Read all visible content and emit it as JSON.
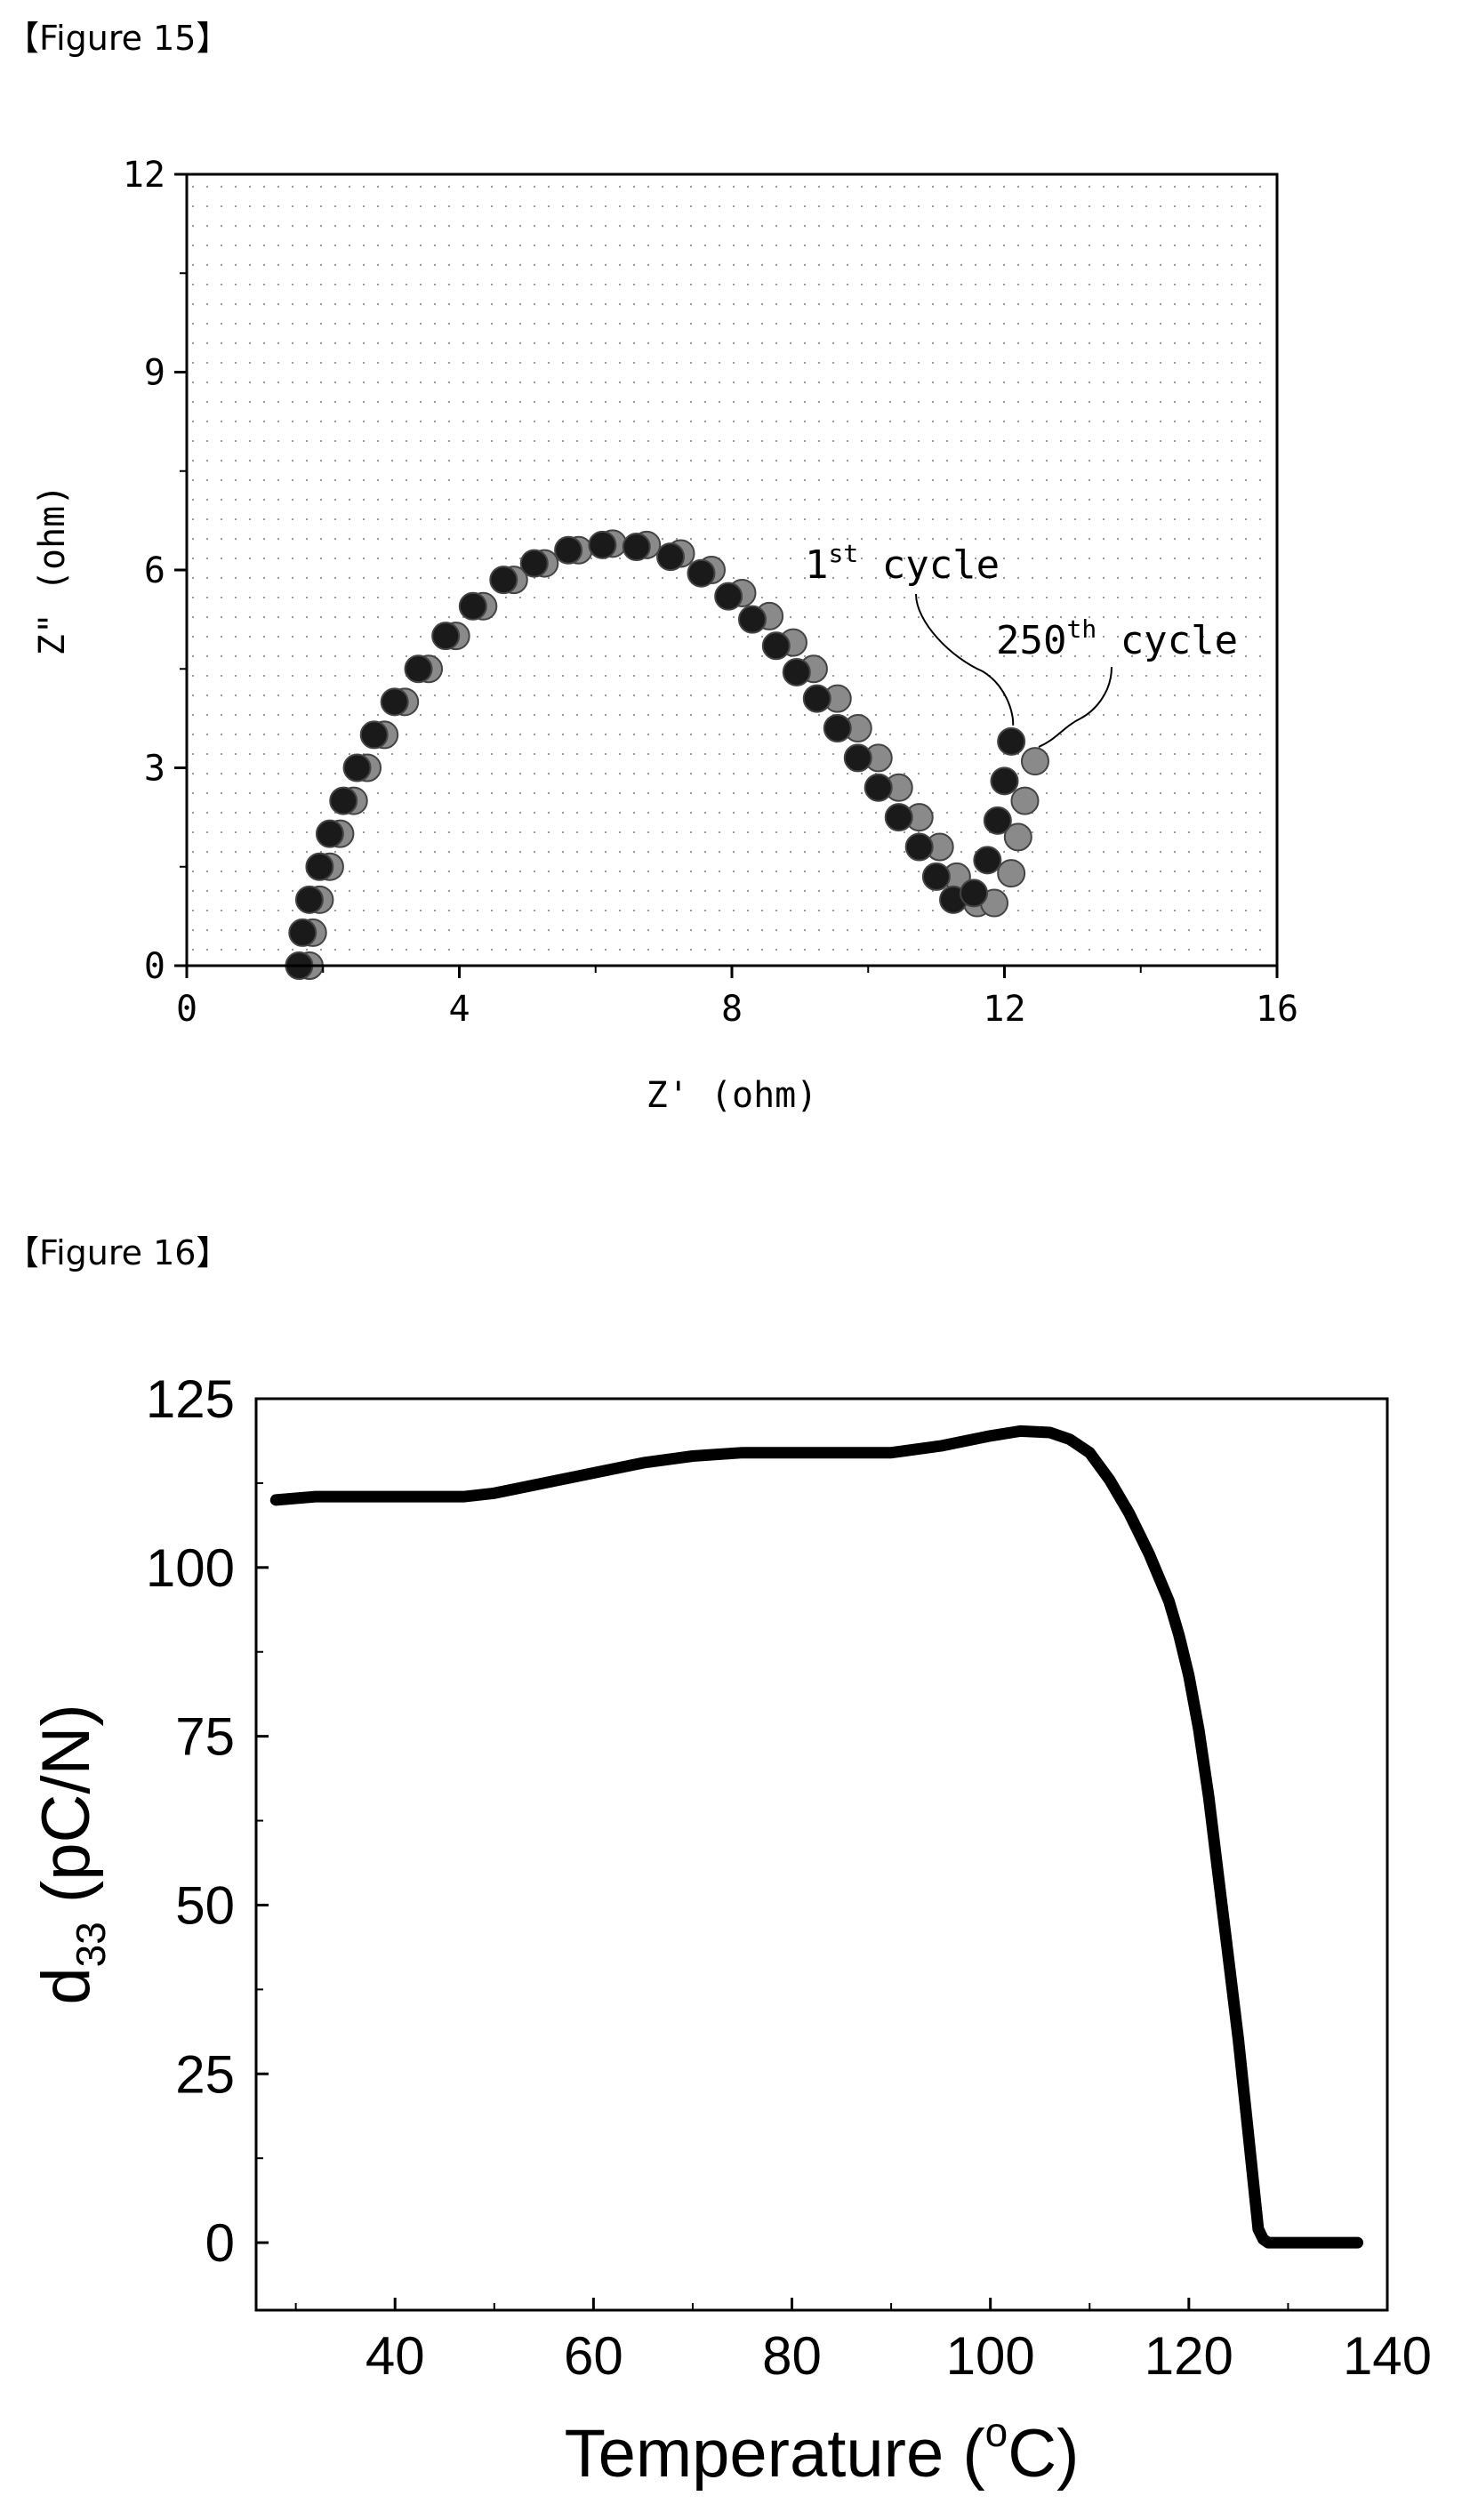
{
  "figures": [
    {
      "caption": "【Figure 15】"
    },
    {
      "caption": "【Figure 16】"
    }
  ],
  "chart_data": [
    {
      "type": "scatter",
      "xlabel": "Z' (ohm)",
      "ylabel": "Z\" (ohm)",
      "xlim": [
        0,
        16
      ],
      "ylim": [
        0,
        12
      ],
      "xticks": [
        "0",
        "4",
        "8",
        "12",
        "16"
      ],
      "yticks": [
        "0",
        "3",
        "6",
        "9",
        "12"
      ],
      "grid": true,
      "annotations": [
        {
          "base": "1",
          "sup": "st",
          "text": " cycle"
        },
        {
          "base": "250",
          "sup": "th",
          "text": " cycle"
        }
      ],
      "series": [
        {
          "name": "1st cycle",
          "color": "#1a1a1a",
          "points": [
            [
              1.65,
              0.0
            ],
            [
              1.7,
              0.5
            ],
            [
              1.8,
              1.0
            ],
            [
              1.95,
              1.5
            ],
            [
              2.1,
              2.0
            ],
            [
              2.3,
              2.5
            ],
            [
              2.5,
              3.0
            ],
            [
              2.75,
              3.5
            ],
            [
              3.05,
              4.0
            ],
            [
              3.4,
              4.5
            ],
            [
              3.8,
              5.0
            ],
            [
              4.2,
              5.45
            ],
            [
              4.65,
              5.85
            ],
            [
              5.1,
              6.1
            ],
            [
              5.6,
              6.3
            ],
            [
              6.1,
              6.38
            ],
            [
              6.6,
              6.35
            ],
            [
              7.1,
              6.2
            ],
            [
              7.55,
              5.95
            ],
            [
              7.95,
              5.6
            ],
            [
              8.3,
              5.25
            ],
            [
              8.65,
              4.85
            ],
            [
              8.95,
              4.45
            ],
            [
              9.25,
              4.05
            ],
            [
              9.55,
              3.6
            ],
            [
              9.85,
              3.15
            ],
            [
              10.15,
              2.7
            ],
            [
              10.45,
              2.25
            ],
            [
              10.75,
              1.8
            ],
            [
              11.0,
              1.35
            ],
            [
              11.25,
              1.0
            ],
            [
              11.55,
              1.1
            ],
            [
              11.75,
              1.6
            ],
            [
              11.9,
              2.2
            ],
            [
              12.0,
              2.8
            ],
            [
              12.1,
              3.4
            ]
          ]
        },
        {
          "name": "250th cycle",
          "color": "#8a8a8a",
          "points": [
            [
              1.8,
              0.0
            ],
            [
              1.85,
              0.5
            ],
            [
              1.95,
              1.0
            ],
            [
              2.1,
              1.5
            ],
            [
              2.25,
              2.0
            ],
            [
              2.45,
              2.5
            ],
            [
              2.65,
              3.0
            ],
            [
              2.9,
              3.5
            ],
            [
              3.2,
              4.0
            ],
            [
              3.55,
              4.5
            ],
            [
              3.95,
              5.0
            ],
            [
              4.35,
              5.45
            ],
            [
              4.8,
              5.85
            ],
            [
              5.25,
              6.1
            ],
            [
              5.75,
              6.3
            ],
            [
              6.25,
              6.4
            ],
            [
              6.75,
              6.38
            ],
            [
              7.25,
              6.25
            ],
            [
              7.7,
              6.0
            ],
            [
              8.15,
              5.65
            ],
            [
              8.55,
              5.3
            ],
            [
              8.9,
              4.9
            ],
            [
              9.2,
              4.5
            ],
            [
              9.55,
              4.05
            ],
            [
              9.85,
              3.6
            ],
            [
              10.15,
              3.15
            ],
            [
              10.45,
              2.7
            ],
            [
              10.75,
              2.25
            ],
            [
              11.05,
              1.8
            ],
            [
              11.3,
              1.35
            ],
            [
              11.6,
              0.95
            ],
            [
              11.85,
              0.95
            ],
            [
              12.1,
              1.4
            ],
            [
              12.2,
              1.95
            ],
            [
              12.3,
              2.5
            ],
            [
              12.45,
              3.1
            ]
          ]
        }
      ]
    },
    {
      "type": "line",
      "xlabel": "Temperature (°C)",
      "ylabel": "d33 (pC/N)",
      "ylabel_base": "d",
      "ylabel_sub": "33",
      "ylabel_rest": " (pC/N)",
      "xlabel_base": "Temperature (",
      "xlabel_sup": "o",
      "xlabel_rest": "C)",
      "xlim": [
        26,
        140
      ],
      "ylim": [
        -10,
        125
      ],
      "xticks": [
        "40",
        "60",
        "80",
        "100",
        "120",
        "140"
      ],
      "yticks": [
        "0",
        "25",
        "50",
        "75",
        "100",
        "125"
      ],
      "grid": false,
      "series": [
        {
          "name": "",
          "color": "#000000",
          "points": [
            [
              28,
              110
            ],
            [
              32,
              110.5
            ],
            [
              40,
              110.5
            ],
            [
              47,
              110.5
            ],
            [
              50,
              111
            ],
            [
              55,
              112.5
            ],
            [
              60,
              114
            ],
            [
              65,
              115.5
            ],
            [
              70,
              116.5
            ],
            [
              75,
              117
            ],
            [
              80,
              117
            ],
            [
              85,
              117
            ],
            [
              90,
              117
            ],
            [
              95,
              118
            ],
            [
              100,
              119.5
            ],
            [
              103,
              120.2
            ],
            [
              106,
              120
            ],
            [
              108,
              119
            ],
            [
              110,
              117
            ],
            [
              112,
              113
            ],
            [
              114,
              108
            ],
            [
              116,
              102
            ],
            [
              118,
              95
            ],
            [
              119,
              90
            ],
            [
              120,
              84
            ],
            [
              121,
              76
            ],
            [
              122,
              66
            ],
            [
              123,
              54
            ],
            [
              124,
              42
            ],
            [
              125,
              30
            ],
            [
              126,
              16
            ],
            [
              127,
              2
            ],
            [
              127.5,
              0.5
            ],
            [
              128,
              0
            ],
            [
              130,
              0
            ],
            [
              134,
              0
            ],
            [
              137,
              0
            ]
          ]
        }
      ]
    }
  ]
}
